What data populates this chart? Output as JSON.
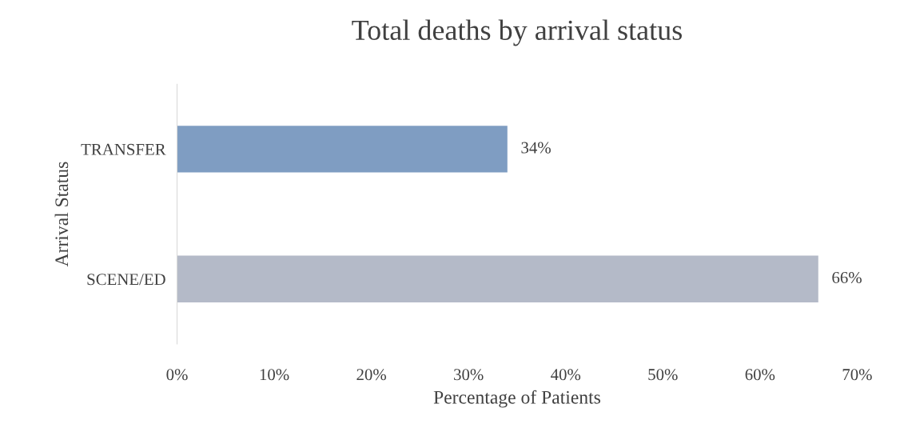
{
  "chart_data": {
    "type": "bar",
    "orientation": "horizontal",
    "title": "Total deaths by arrival status",
    "xlabel": "Percentage of Patients",
    "ylabel": "Arrival Status",
    "categories": [
      "TRANSFER",
      "SCENE/ED"
    ],
    "values": [
      34,
      66
    ],
    "colors": [
      "#7f9dc2",
      "#b4bac8"
    ],
    "value_labels": [
      "34%",
      "66%"
    ],
    "xlim": [
      0,
      70
    ],
    "xticks": [
      {
        "value": 0,
        "label": "0%"
      },
      {
        "value": 10,
        "label": "10%"
      },
      {
        "value": 20,
        "label": "20%"
      },
      {
        "value": 30,
        "label": "30%"
      },
      {
        "value": 40,
        "label": "40%"
      },
      {
        "value": 50,
        "label": "50%"
      },
      {
        "value": 60,
        "label": "60%"
      },
      {
        "value": 70,
        "label": "70%"
      }
    ],
    "grid": false,
    "legend": false
  }
}
